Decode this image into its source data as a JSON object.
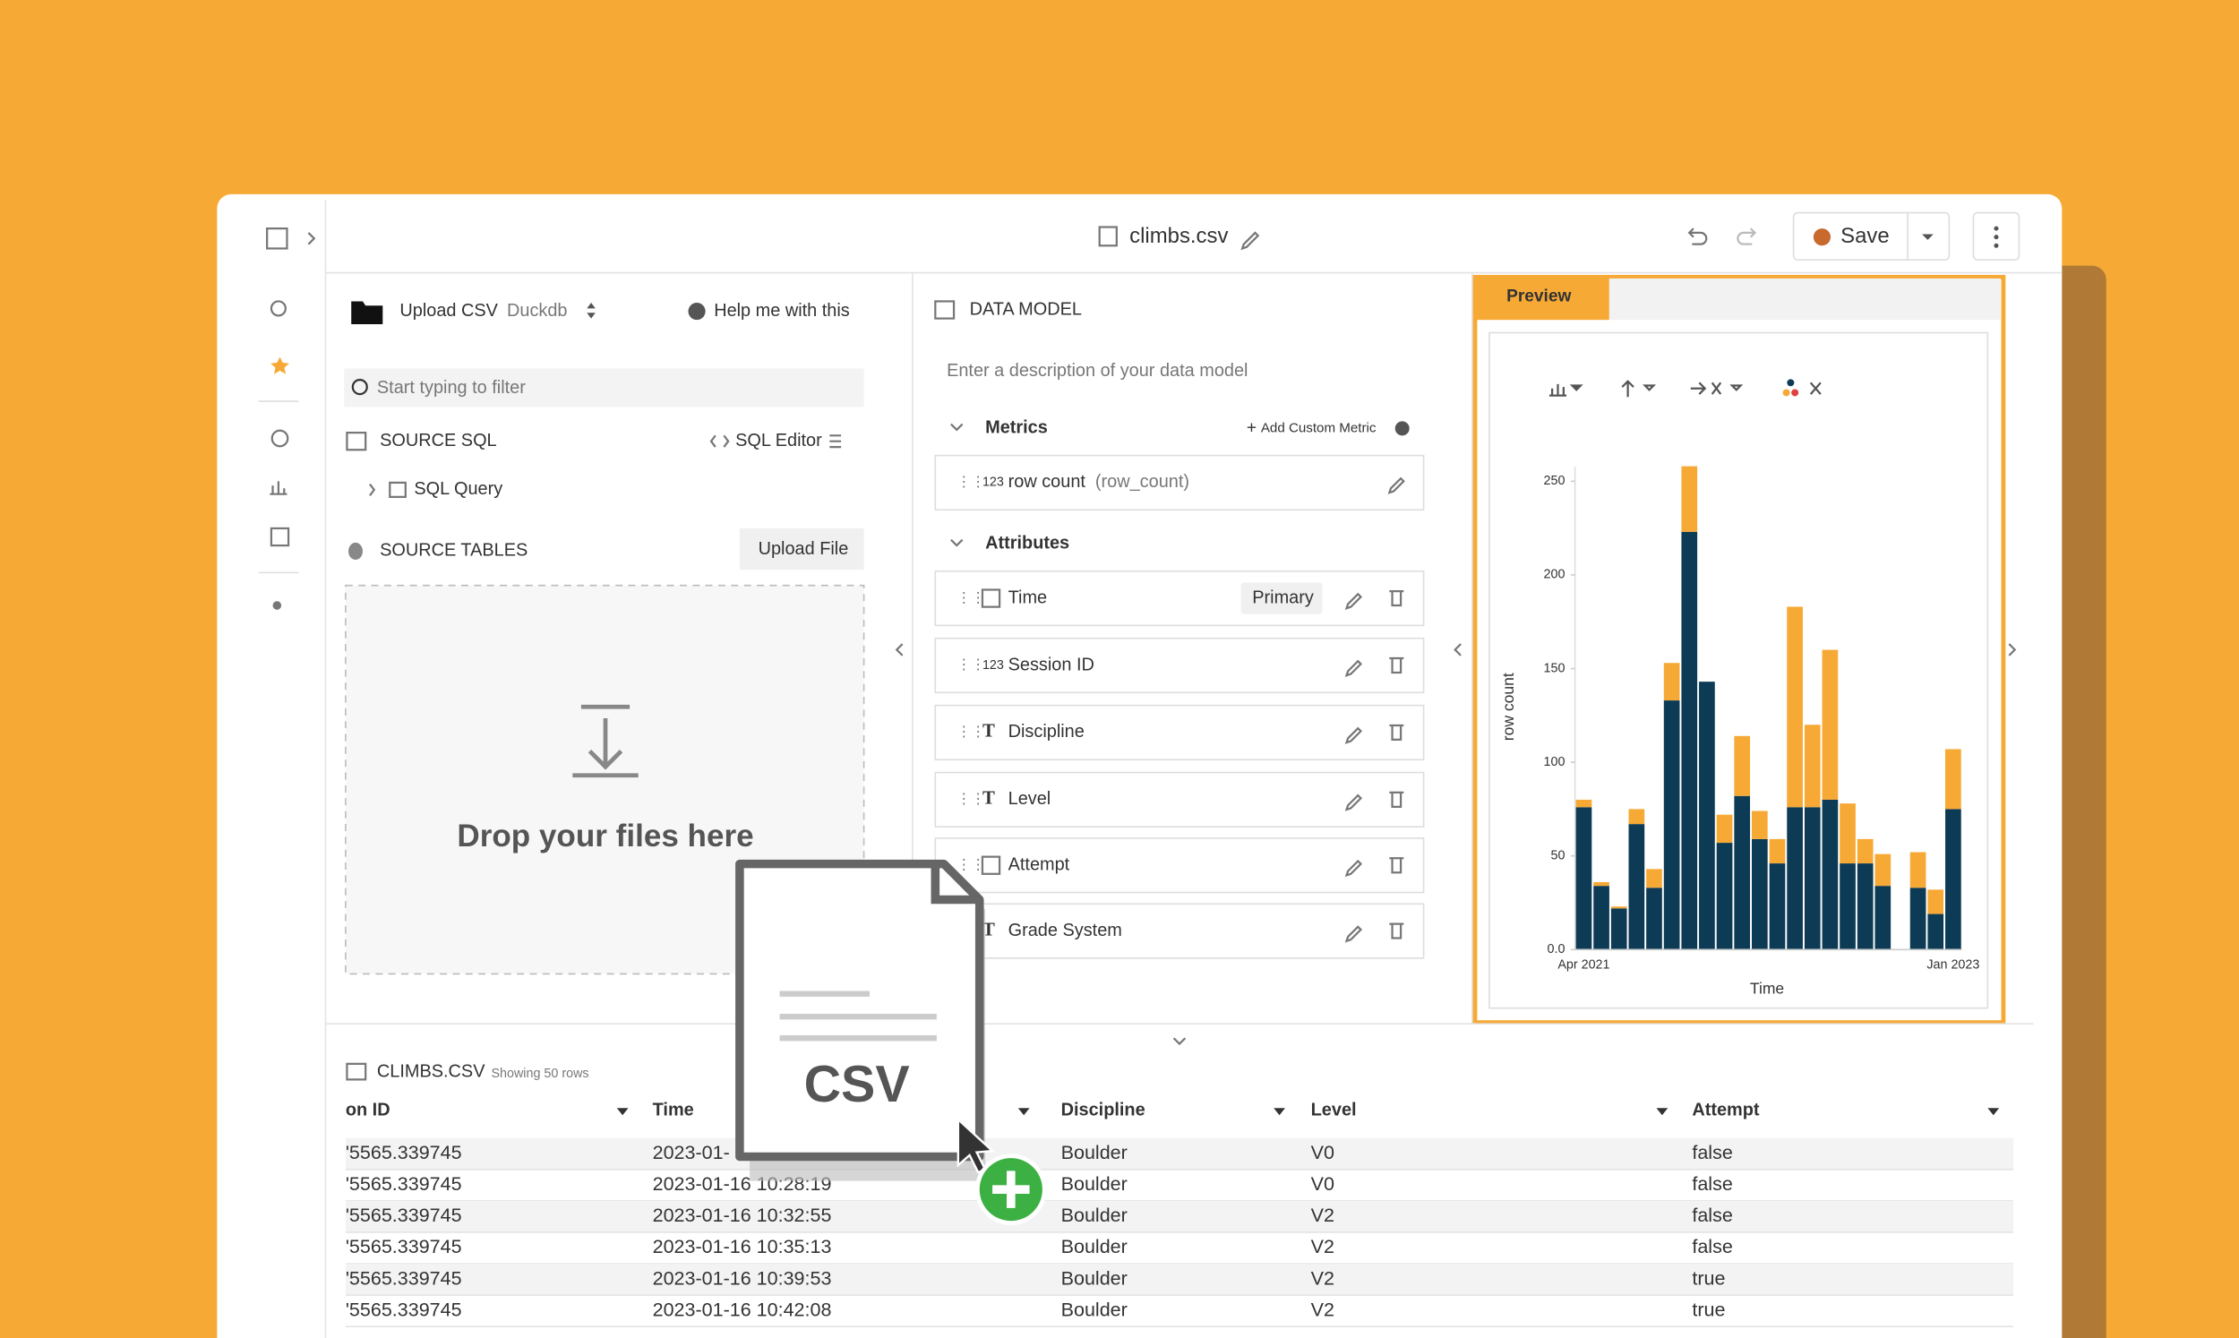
{
  "toolbar": {
    "title": "climbs.csv",
    "save": "Save"
  },
  "source_panel": {
    "upload": "Upload CSV",
    "engine": "Duckdb",
    "help": "Help me with this",
    "filter_placeholder": "Start typing to filter",
    "source_sql": "SOURCE SQL",
    "sql_editor": "SQL Editor",
    "sql_query": "SQL Query",
    "source_tables": "SOURCE TABLES",
    "upload_file": "Upload File",
    "drop_text": "Drop your files here"
  },
  "data_model": {
    "title": "DATA MODEL",
    "description_placeholder": "Enter a description of your data model",
    "metrics_title": "Metrics",
    "add_metric": "Add Custom Metric",
    "metric": {
      "icon": "123",
      "label": "row count",
      "key": "(row_count)"
    },
    "attributes_title": "Attributes",
    "attributes": [
      {
        "icon": "",
        "label": "Time",
        "badge": "Primary"
      },
      {
        "icon": "123",
        "label": "Session ID"
      },
      {
        "icon": "T",
        "label": "Discipline"
      },
      {
        "icon": "T",
        "label": "Level"
      },
      {
        "icon": "",
        "label": "Attempt"
      },
      {
        "icon": "T",
        "label": "Grade System"
      }
    ]
  },
  "preview": {
    "tab": "Preview"
  },
  "chart_data": {
    "type": "stacked_bar",
    "xlabel": "Time",
    "ylabel": "row count",
    "categories": [
      "Apr 2021",
      null,
      null,
      null,
      null,
      null,
      null,
      null,
      null,
      null,
      null,
      null,
      null,
      null,
      null,
      null,
      null,
      null,
      null,
      null,
      null,
      "Jan 2023"
    ],
    "series": [
      {
        "color": "#0d3b56",
        "values": [
          76,
          34,
          22,
          67,
          33,
          133,
          223,
          143,
          57,
          82,
          59,
          46,
          76,
          76,
          80,
          46,
          46,
          34,
          null,
          33,
          19,
          75
        ]
      },
      {
        "color": "#f7a935",
        "values": [
          4,
          2,
          1,
          8,
          10,
          20,
          35,
          0,
          15,
          32,
          15,
          13,
          107,
          44,
          80,
          32,
          13,
          17,
          null,
          19,
          13,
          32
        ]
      }
    ],
    "ylim": [
      0,
      250
    ],
    "yticks": [
      {
        "value": 0,
        "label": "0.0"
      },
      50,
      100,
      150,
      200,
      250
    ],
    "grid": false
  },
  "table": {
    "title": "CLIMBS.CSV",
    "subtitle": "Showing 50 rows",
    "columns": [
      "on ID",
      "Time",
      "Discipline",
      "Level",
      "Attempt"
    ],
    "rows": [
      [
        "'5565.339745",
        "2023-01-",
        "Boulder",
        "V0",
        "false"
      ],
      [
        "'5565.339745",
        "2023-01-16 10:28:19",
        "Boulder",
        "V0",
        "false"
      ],
      [
        "'5565.339745",
        "2023-01-16 10:32:55",
        "Boulder",
        "V2",
        "false"
      ],
      [
        "'5565.339745",
        "2023-01-16 10:35:13",
        "Boulder",
        "V2",
        "false"
      ],
      [
        "'5565.339745",
        "2023-01-16 10:39:53",
        "Boulder",
        "V2",
        "true"
      ],
      [
        "'5565.339745",
        "2023-01-16 10:42:08",
        "Boulder",
        "V2",
        "true"
      ]
    ]
  },
  "file_icon": {
    "label": "CSV"
  }
}
